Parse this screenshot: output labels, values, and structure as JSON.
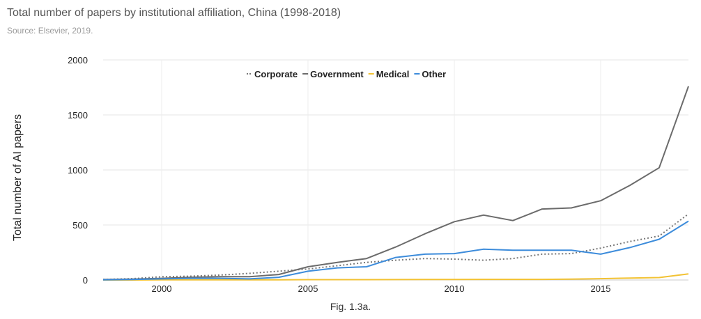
{
  "title": "Total number of papers by institutional affiliation, China (1998-2018)",
  "subtitle": "Source: Elsevier, 2019.",
  "caption": "Fig. 1.3a.",
  "chart_data": {
    "type": "line",
    "title": "Total number of papers by institutional affiliation, China (1998-2018)",
    "xlabel": "",
    "ylabel": "Total number of AI papers",
    "xlim": [
      1998,
      2018
    ],
    "ylim": [
      0,
      2000
    ],
    "yticks": [
      0,
      500,
      1000,
      1500,
      2000
    ],
    "xticks": [
      2000,
      2005,
      2010,
      2015
    ],
    "grid": true,
    "legend_position": "top",
    "x": [
      1998,
      1999,
      2000,
      2001,
      2002,
      2003,
      2004,
      2005,
      2006,
      2007,
      2008,
      2009,
      2010,
      2011,
      2012,
      2013,
      2014,
      2015,
      2016,
      2017,
      2018
    ],
    "series": [
      {
        "name": "Corporate",
        "color": "#777777",
        "style": "dotted",
        "values": [
          5,
          12,
          30,
          35,
          45,
          60,
          80,
          100,
          130,
          160,
          180,
          195,
          190,
          180,
          195,
          235,
          240,
          290,
          350,
          400,
          600
        ]
      },
      {
        "name": "Government",
        "color": "#6b6b6b",
        "style": "solid",
        "values": [
          5,
          8,
          15,
          25,
          30,
          30,
          50,
          120,
          160,
          195,
          300,
          420,
          530,
          590,
          540,
          645,
          655,
          720,
          860,
          1020,
          1760
        ]
      },
      {
        "name": "Medical",
        "color": "#f2c233",
        "style": "solid",
        "values": [
          0,
          0,
          1,
          1,
          1,
          2,
          2,
          3,
          3,
          3,
          4,
          5,
          5,
          6,
          6,
          6,
          8,
          12,
          18,
          22,
          55
        ]
      },
      {
        "name": "Other",
        "color": "#3d8cdb",
        "style": "solid",
        "values": [
          2,
          5,
          10,
          15,
          15,
          10,
          25,
          80,
          110,
          120,
          205,
          235,
          240,
          280,
          270,
          270,
          270,
          235,
          295,
          370,
          535
        ]
      }
    ]
  }
}
